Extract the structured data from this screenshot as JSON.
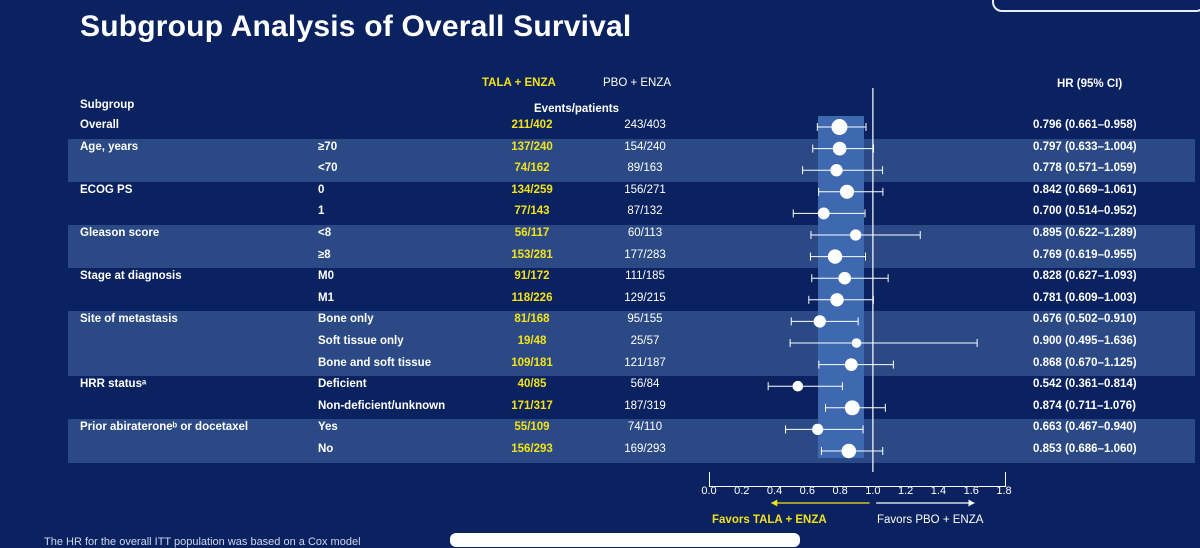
{
  "title": "Subgroup Analysis of Overall Survival",
  "headers": {
    "arm1": "TALA + ENZA",
    "arm2": "PBO + ENZA",
    "subgroup": "Subgroup",
    "events": "Events/patients",
    "hr": "HR (95% CI)"
  },
  "rows": [
    {
      "group": "Overall",
      "level": "",
      "ev1": "211/402",
      "ev2": "243/403",
      "hr_text": "0.796 (0.661–0.958)"
    },
    {
      "group": "Age, years",
      "level": "≥70",
      "ev1": "137/240",
      "ev2": "154/240",
      "hr_text": "0.797 (0.633–1.004)"
    },
    {
      "group": "",
      "level": "<70",
      "ev1": "74/162",
      "ev2": "89/163",
      "hr_text": "0.778 (0.571–1.059)"
    },
    {
      "group": "ECOG PS",
      "level": "0",
      "ev1": "134/259",
      "ev2": "156/271",
      "hr_text": "0.842 (0.669–1.061)"
    },
    {
      "group": "",
      "level": "1",
      "ev1": "77/143",
      "ev2": "87/132",
      "hr_text": "0.700 (0.514–0.952)"
    },
    {
      "group": "Gleason score",
      "level": "<8",
      "ev1": "56/117",
      "ev2": "60/113",
      "hr_text": "0.895 (0.622–1.289)"
    },
    {
      "group": "",
      "level": "≥8",
      "ev1": "153/281",
      "ev2": "177/283",
      "hr_text": "0.769 (0.619–0.955)"
    },
    {
      "group": "Stage at diagnosis",
      "level": "M0",
      "ev1": "91/172",
      "ev2": "111/185",
      "hr_text": "0.828 (0.627–1.093)"
    },
    {
      "group": "",
      "level": "M1",
      "ev1": "118/226",
      "ev2": "129/215",
      "hr_text": "0.781 (0.609–1.003)"
    },
    {
      "group": "Site of metastasis",
      "level": "Bone only",
      "ev1": "81/168",
      "ev2": "95/155",
      "hr_text": "0.676 (0.502–0.910)"
    },
    {
      "group": "",
      "level": "Soft tissue only",
      "ev1": "19/48",
      "ev2": "25/57",
      "hr_text": "0.900 (0.495–1.636)"
    },
    {
      "group": "",
      "level": "Bone and soft tissue",
      "ev1": "109/181",
      "ev2": "121/187",
      "hr_text": "0.868 (0.670–1.125)"
    },
    {
      "group": "HRR statusᵃ",
      "level": "Deficient",
      "ev1": "40/85",
      "ev2": "56/84",
      "hr_text": "0.542 (0.361–0.814)"
    },
    {
      "group": "",
      "level": "Non-deficient/unknown",
      "ev1": "171/317",
      "ev2": "187/319",
      "hr_text": "0.874 (0.711–1.076)"
    },
    {
      "group": "Prior abirateroneᵇ or docetaxel",
      "level": "Yes",
      "ev1": "55/109",
      "ev2": "74/110",
      "hr_text": "0.663 (0.467–0.940)"
    },
    {
      "group": "",
      "level": "No",
      "ev1": "156/293",
      "ev2": "169/293",
      "hr_text": "0.853 (0.686–1.060)"
    }
  ],
  "axis": {
    "ticks": [
      "0.0",
      "0.2",
      "0.4",
      "0.6",
      "0.8",
      "1.0",
      "1.2",
      "1.4",
      "1.6",
      "1.8"
    ],
    "favors_left": "Favors TALA + ENZA",
    "favors_right": "Favors PBO + ENZA"
  },
  "footnote": "The HR for the overall ITT population was based on a Cox model",
  "colors": {
    "background": "#0b2260",
    "band": "#2b4a85",
    "highlight": "#3e68b0",
    "arm1": "#f3e218",
    "text": "#ffffff"
  },
  "chart_data": {
    "type": "forest",
    "title": "Subgroup Analysis of Overall Survival",
    "xlabel": "",
    "xlim": [
      0.0,
      1.8
    ],
    "reference_line": 1.0,
    "categories": [
      "Overall",
      "≥70",
      "<70",
      "0",
      "1",
      "<8",
      "≥8",
      "M0",
      "M1",
      "Bone only",
      "Soft tissue only",
      "Bone and soft tissue",
      "Deficient",
      "Non-deficient/unknown",
      "Yes",
      "No"
    ],
    "hr": [
      0.796,
      0.797,
      0.778,
      0.842,
      0.7,
      0.895,
      0.769,
      0.828,
      0.781,
      0.676,
      0.9,
      0.868,
      0.542,
      0.874,
      0.663,
      0.853
    ],
    "ci_low": [
      0.661,
      0.633,
      0.571,
      0.669,
      0.514,
      0.622,
      0.619,
      0.627,
      0.609,
      0.502,
      0.495,
      0.67,
      0.361,
      0.711,
      0.467,
      0.686
    ],
    "ci_high": [
      0.958,
      1.004,
      1.059,
      1.061,
      0.952,
      1.289,
      0.955,
      1.093,
      1.003,
      0.91,
      1.636,
      1.125,
      0.814,
      1.076,
      0.94,
      1.06
    ],
    "patients": [
      805,
      480,
      325,
      530,
      275,
      230,
      564,
      357,
      441,
      323,
      105,
      368,
      169,
      636,
      219,
      586
    ],
    "highlight_range": [
      0.661,
      0.958
    ]
  }
}
